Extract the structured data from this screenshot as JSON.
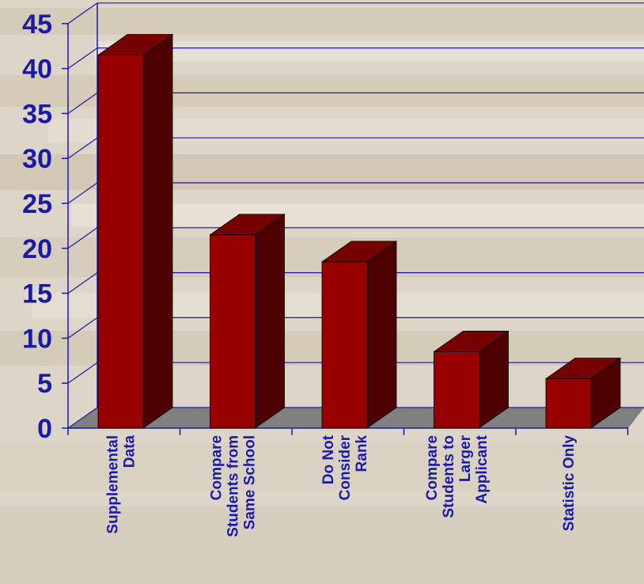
{
  "chart_data": {
    "type": "bar",
    "title": "",
    "xlabel": "",
    "ylabel": "",
    "categories": [
      [
        "Supplemental",
        "Data"
      ],
      [
        "Compare",
        "Students from",
        "Same School"
      ],
      [
        "Do Not",
        "Consider",
        "Rank"
      ],
      [
        "Compare",
        "Students to",
        "Larger",
        "Applicant"
      ],
      [
        "Statistic Only"
      ]
    ],
    "values": [
      41.5,
      21.5,
      18.5,
      8.5,
      5.5
    ],
    "ylim": [
      0,
      45
    ],
    "yticks": [
      0,
      5,
      10,
      15,
      20,
      25,
      30,
      35,
      40,
      45
    ],
    "ytick_labels": [
      "0",
      "5",
      "10",
      "15",
      "20",
      "25",
      "30",
      "35",
      "40",
      "45"
    ],
    "grid": true,
    "legend": "none",
    "style": "3d-bar",
    "colors": {
      "bar_front": "#990000",
      "bar_side": "#4d0000",
      "bar_top": "#770000",
      "floor": "#808080",
      "gridline": "#1a1aa6",
      "text": "#1a1aa6"
    }
  }
}
